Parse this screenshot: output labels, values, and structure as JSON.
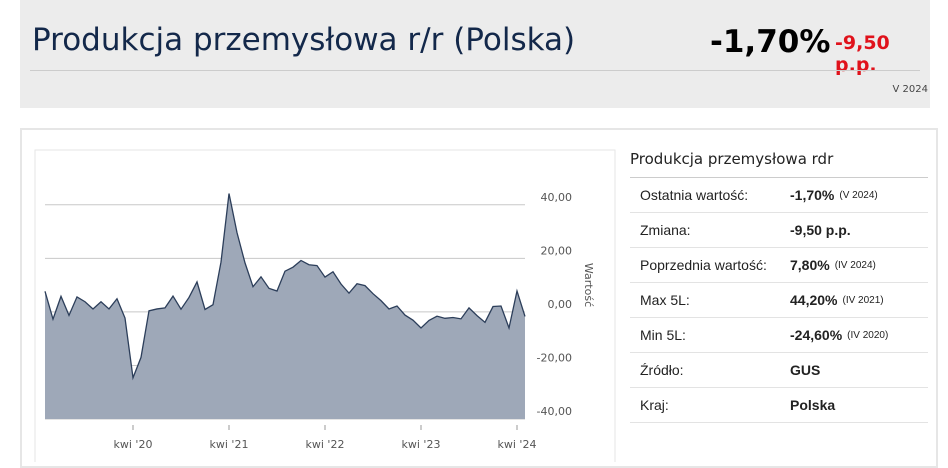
{
  "header": {
    "title": "Produkcja przemysłowa r/r (Polska)",
    "value": "-1,70%",
    "change": "-9,50 p.p.",
    "period": "V 2024"
  },
  "chart_data": {
    "type": "area",
    "y_label": "Wartość",
    "categories": [
      null,
      null,
      null,
      null,
      null,
      null,
      null,
      null,
      null,
      null,
      null,
      "kwi '20",
      null,
      null,
      null,
      null,
      null,
      null,
      null,
      null,
      null,
      null,
      null,
      "kwi '21",
      null,
      null,
      null,
      null,
      null,
      null,
      null,
      null,
      null,
      null,
      null,
      "kwi '22",
      null,
      null,
      null,
      null,
      null,
      null,
      null,
      null,
      null,
      null,
      null,
      "kwi '23",
      null,
      null,
      null,
      null,
      null,
      null,
      null,
      null,
      null,
      null,
      null,
      "kwi '24",
      null
    ],
    "series": [
      {
        "color": "#2c3e5a",
        "fill": "#9ea8b8",
        "values": [
          7.7,
          -2.7,
          5.8,
          -1.3,
          5.6,
          3.8,
          1.1,
          3.8,
          1.1,
          4.9,
          -2.3,
          -24.6,
          -17,
          0.4,
          1.1,
          1.5,
          5.9,
          1.0,
          5.4,
          11.2,
          0.9,
          2.7,
          18.6,
          44.2,
          29.6,
          18.3,
          9.4,
          13.1,
          8.8,
          7.8,
          15.2,
          16.7,
          19.2,
          17.6,
          17.3,
          13.0,
          15.0,
          10.4,
          7.0,
          10.5,
          9.8,
          6.8,
          4.2,
          1.1,
          2.2,
          -1.2,
          -3.1,
          -6.0,
          -3.2,
          -1.6,
          -2.4,
          -2.1,
          -2.6,
          1.5,
          -1.4,
          -3.9,
          2.0,
          2.2,
          -6.0,
          7.8,
          -1.7
        ]
      }
    ],
    "ylim": [
      -40,
      50
    ],
    "yticks": [
      {
        "value": -40,
        "label": "-40,00"
      },
      {
        "value": -20,
        "label": "-20,00"
      },
      {
        "value": 0,
        "label": "0,00"
      },
      {
        "value": 20,
        "label": "20,00"
      },
      {
        "value": 40,
        "label": "40,00"
      }
    ],
    "grid": true
  },
  "table": {
    "title": "Produkcja przemysłowa rdr",
    "rows": [
      {
        "label": "Ostatnia wartość:",
        "value": "-1,70%",
        "note": "(V 2024)"
      },
      {
        "label": "Zmiana:",
        "value": "-9,50 p.p."
      },
      {
        "label": "Poprzednia wartość:",
        "value": "7,80%",
        "note": "(IV 2024)"
      },
      {
        "label": "Max 5L:",
        "value": "44,20%",
        "note": "(IV 2021)"
      },
      {
        "label": "Min 5L:",
        "value": "-24,60%",
        "note": "(IV 2020)"
      },
      {
        "label": "Źródło:",
        "value": "GUS"
      },
      {
        "label": "Kraj:",
        "value": "Polska"
      }
    ]
  }
}
